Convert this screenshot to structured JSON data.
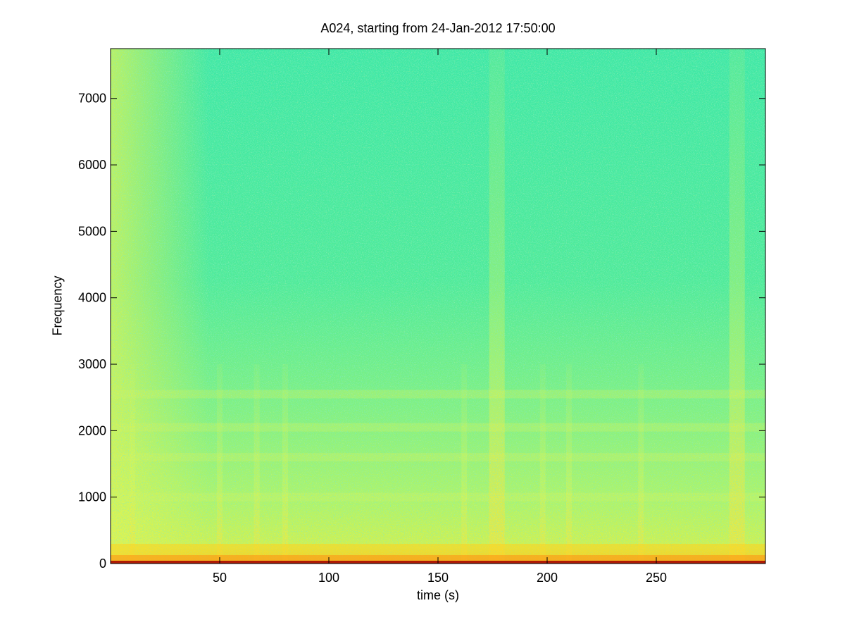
{
  "chart_data": {
    "type": "heatmap",
    "title": "A024, starting from 24-Jan-2012 17:50:00",
    "xlabel": "time (s)",
    "ylabel": "Frequency",
    "xlim": [
      0,
      300
    ],
    "ylim": [
      0,
      7750
    ],
    "xticks": [
      50,
      100,
      150,
      200,
      250
    ],
    "yticks": [
      0,
      1000,
      2000,
      3000,
      4000,
      5000,
      6000,
      7000
    ],
    "xtick_labels": [
      "50",
      "100",
      "150",
      "200",
      "250"
    ],
    "ytick_labels": [
      "0",
      "1000",
      "2000",
      "3000",
      "4000",
      "5000",
      "6000",
      "7000"
    ],
    "colormap": "jet",
    "colorbar": false,
    "grid": false,
    "background_color": "#38e8a2",
    "bright_time_bands_s": [
      10,
      50,
      67,
      80,
      162,
      177,
      198,
      210,
      243,
      287
    ],
    "horizontal_bands_hz": [
      1000,
      1600,
      2050,
      2550
    ],
    "low_frequency_energy": "strong near 0 Hz across all times"
  }
}
